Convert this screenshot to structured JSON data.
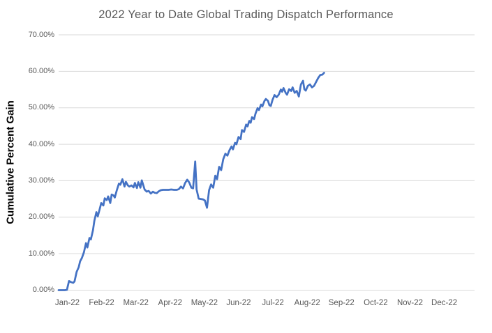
{
  "chart_data": {
    "type": "line",
    "title": "2022 Year to Date Global Trading Dispatch Performance",
    "xlabel": "",
    "ylabel": "Cumulative Percent Gain",
    "legend": "none",
    "grid": "horizontal",
    "ylim": [
      0,
      70
    ],
    "x_months_range": [
      0,
      12
    ],
    "y_ticks": [
      {
        "value": 0,
        "label": "0.00%"
      },
      {
        "value": 10,
        "label": "10.00%"
      },
      {
        "value": 20,
        "label": "20.00%"
      },
      {
        "value": 30,
        "label": "30.00%"
      },
      {
        "value": 40,
        "label": "40.00%"
      },
      {
        "value": 50,
        "label": "50.00%"
      },
      {
        "value": 60,
        "label": "60.00%"
      },
      {
        "value": 70,
        "label": "70.00%"
      }
    ],
    "x_tick_labels": [
      "Jan-22",
      "Feb-22",
      "Mar-22",
      "Apr-22",
      "May-22",
      "Jun-22",
      "Jul-22",
      "Aug-22",
      "Sep-22",
      "Oct-22",
      "Nov-22",
      "Dec-22"
    ],
    "series": [
      {
        "name": "Cumulative Percent Gain",
        "color": "#4472C4",
        "points_note": "each point is [month_fraction (0=Jan 1), cumulative_percent_gain]",
        "points": [
          [
            0.0,
            0.0
          ],
          [
            0.1,
            0.0
          ],
          [
            0.18,
            0.0
          ],
          [
            0.24,
            0.1
          ],
          [
            0.3,
            2.5
          ],
          [
            0.36,
            2.2
          ],
          [
            0.42,
            2.0
          ],
          [
            0.46,
            2.4
          ],
          [
            0.52,
            5.0
          ],
          [
            0.58,
            6.3
          ],
          [
            0.62,
            7.9
          ],
          [
            0.67,
            8.8
          ],
          [
            0.73,
            10.4
          ],
          [
            0.79,
            12.9
          ],
          [
            0.83,
            11.7
          ],
          [
            0.89,
            14.3
          ],
          [
            0.93,
            13.9
          ],
          [
            0.99,
            16.4
          ],
          [
            1.03,
            19.0
          ],
          [
            1.09,
            21.4
          ],
          [
            1.13,
            20.2
          ],
          [
            1.19,
            22.4
          ],
          [
            1.23,
            23.9
          ],
          [
            1.29,
            23.2
          ],
          [
            1.33,
            25.2
          ],
          [
            1.39,
            24.7
          ],
          [
            1.43,
            25.7
          ],
          [
            1.49,
            23.9
          ],
          [
            1.53,
            26.2
          ],
          [
            1.58,
            26.0
          ],
          [
            1.62,
            25.4
          ],
          [
            1.68,
            27.4
          ],
          [
            1.74,
            29.2
          ],
          [
            1.78,
            28.9
          ],
          [
            1.84,
            30.4
          ],
          [
            1.9,
            28.4
          ],
          [
            1.94,
            29.7
          ],
          [
            2.0,
            28.7
          ],
          [
            2.04,
            28.4
          ],
          [
            2.1,
            28.7
          ],
          [
            2.16,
            28.2
          ],
          [
            2.2,
            29.4
          ],
          [
            2.26,
            28.0
          ],
          [
            2.3,
            29.6
          ],
          [
            2.36,
            28.1
          ],
          [
            2.4,
            30.1
          ],
          [
            2.48,
            27.6
          ],
          [
            2.54,
            27.0
          ],
          [
            2.6,
            27.2
          ],
          [
            2.66,
            26.5
          ],
          [
            2.72,
            27.0
          ],
          [
            2.77,
            26.7
          ],
          [
            2.83,
            26.6
          ],
          [
            2.89,
            27.1
          ],
          [
            2.95,
            27.4
          ],
          [
            3.01,
            27.5
          ],
          [
            3.09,
            27.5
          ],
          [
            3.17,
            27.5
          ],
          [
            3.25,
            27.6
          ],
          [
            3.33,
            27.5
          ],
          [
            3.41,
            27.5
          ],
          [
            3.47,
            27.7
          ],
          [
            3.53,
            28.4
          ],
          [
            3.59,
            27.9
          ],
          [
            3.65,
            29.4
          ],
          [
            3.71,
            30.3
          ],
          [
            3.77,
            29.5
          ],
          [
            3.83,
            28.1
          ],
          [
            3.88,
            27.9
          ],
          [
            3.94,
            35.3
          ],
          [
            3.98,
            27.6
          ],
          [
            4.04,
            25.1
          ],
          [
            4.1,
            25.0
          ],
          [
            4.16,
            24.9
          ],
          [
            4.22,
            24.6
          ],
          [
            4.28,
            22.6
          ],
          [
            4.34,
            27.4
          ],
          [
            4.4,
            29.0
          ],
          [
            4.46,
            28.1
          ],
          [
            4.52,
            31.4
          ],
          [
            4.57,
            30.4
          ],
          [
            4.63,
            33.8
          ],
          [
            4.69,
            32.9
          ],
          [
            4.75,
            35.9
          ],
          [
            4.81,
            37.4
          ],
          [
            4.87,
            36.9
          ],
          [
            4.93,
            38.4
          ],
          [
            4.99,
            39.4
          ],
          [
            5.03,
            38.6
          ],
          [
            5.09,
            40.4
          ],
          [
            5.13,
            40.0
          ],
          [
            5.19,
            42.0
          ],
          [
            5.25,
            41.4
          ],
          [
            5.29,
            43.9
          ],
          [
            5.35,
            43.4
          ],
          [
            5.41,
            45.4
          ],
          [
            5.45,
            44.9
          ],
          [
            5.5,
            46.4
          ],
          [
            5.54,
            45.9
          ],
          [
            5.58,
            47.4
          ],
          [
            5.64,
            46.9
          ],
          [
            5.68,
            48.4
          ],
          [
            5.74,
            49.9
          ],
          [
            5.78,
            49.4
          ],
          [
            5.84,
            50.9
          ],
          [
            5.88,
            50.4
          ],
          [
            5.94,
            51.9
          ],
          [
            5.98,
            52.4
          ],
          [
            6.04,
            51.9
          ],
          [
            6.08,
            50.7
          ],
          [
            6.12,
            50.5
          ],
          [
            6.17,
            52.1
          ],
          [
            6.23,
            53.5
          ],
          [
            6.29,
            52.9
          ],
          [
            6.35,
            53.6
          ],
          [
            6.41,
            55.0
          ],
          [
            6.45,
            54.4
          ],
          [
            6.49,
            55.4
          ],
          [
            6.55,
            54.1
          ],
          [
            6.59,
            53.6
          ],
          [
            6.65,
            55.1
          ],
          [
            6.71,
            54.6
          ],
          [
            6.75,
            55.6
          ],
          [
            6.81,
            54.1
          ],
          [
            6.87,
            54.6
          ],
          [
            6.93,
            53.1
          ],
          [
            6.99,
            56.4
          ],
          [
            7.05,
            57.4
          ],
          [
            7.09,
            55.1
          ],
          [
            7.13,
            54.7
          ],
          [
            7.19,
            56.0
          ],
          [
            7.25,
            56.4
          ],
          [
            7.31,
            55.6
          ],
          [
            7.37,
            56.0
          ],
          [
            7.43,
            57.1
          ],
          [
            7.49,
            58.2
          ],
          [
            7.55,
            59.0
          ],
          [
            7.61,
            59.1
          ],
          [
            7.66,
            59.6
          ]
        ]
      }
    ],
    "colors": {
      "line": "#4472C4",
      "gridline": "#D9D9D9",
      "tick_text": "#595959",
      "title_text": "#595959",
      "axis_title_text": "#000000",
      "background": "#FFFFFF"
    }
  }
}
